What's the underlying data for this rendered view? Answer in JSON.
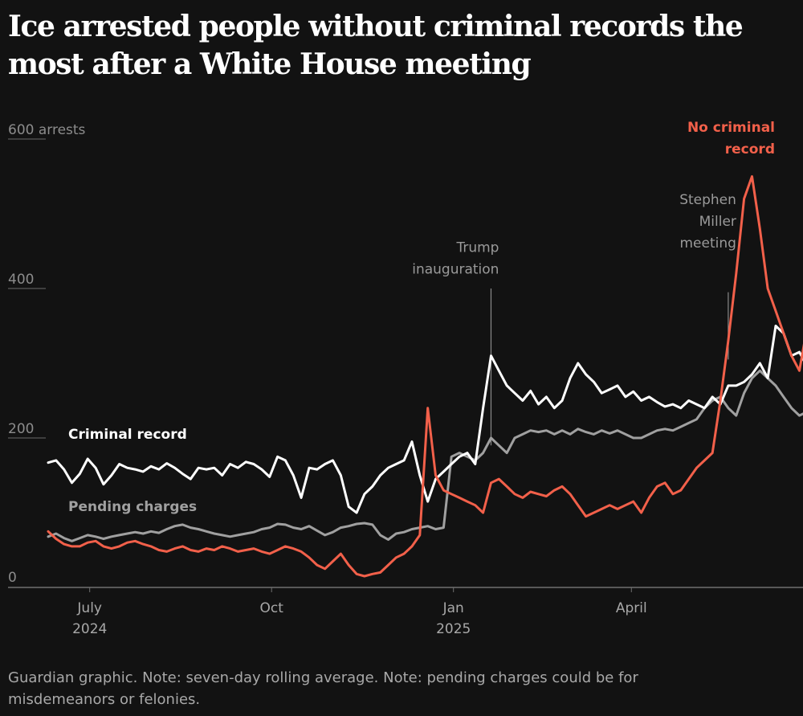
{
  "title": "Ice arrested people without criminal records the most after a White House meeting",
  "footnote": "Guardian graphic. Note: seven-day rolling average. Note: pending charges could be for misdemeanors or felonies.",
  "chart_data": {
    "type": "line",
    "title": "Ice arrested people without criminal records the most after a White House meeting",
    "xlabel": "",
    "ylabel": "arrests",
    "ylim": [
      0,
      600
    ],
    "xlim": [
      "2024-06-10",
      "2025-06-26"
    ],
    "grid": true,
    "y_ticks": [
      {
        "value": 0,
        "label": "0"
      },
      {
        "value": 200,
        "label": "200"
      },
      {
        "value": 400,
        "label": "400"
      },
      {
        "value": 600,
        "label": "600",
        "suffix": " arrests"
      }
    ],
    "x_ticks": [
      {
        "date": "2024-07-01",
        "label": "July",
        "sublabel": "2024"
      },
      {
        "date": "2024-10-01",
        "label": "Oct",
        "sublabel": ""
      },
      {
        "date": "2025-01-01",
        "label": "Jan",
        "sublabel": "2025"
      },
      {
        "date": "2025-04-01",
        "label": "April",
        "sublabel": ""
      }
    ],
    "annotations": [
      {
        "date": "2025-01-20",
        "lines": [
          "Trump",
          "inauguration"
        ],
        "label_value": 420,
        "line_top_value": 400,
        "line_bottom_value": 190
      },
      {
        "date": "2025-05-20",
        "lines": [
          "Stephen",
          "Miller",
          "meeting"
        ],
        "label_value": 455,
        "line_top_value": 395,
        "line_bottom_value": 305
      }
    ],
    "x_step_days": 4,
    "series": [
      {
        "name": "Criminal record",
        "color": "#ffffff",
        "label_position": "above-left",
        "values": [
          167,
          170,
          158,
          140,
          152,
          172,
          160,
          138,
          150,
          165,
          160,
          158,
          155,
          162,
          158,
          166,
          160,
          152,
          145,
          160,
          158,
          160,
          150,
          165,
          160,
          168,
          165,
          158,
          148,
          175,
          170,
          150,
          120,
          160,
          158,
          165,
          170,
          150,
          108,
          100,
          125,
          135,
          150,
          160,
          165,
          170,
          195,
          150,
          115,
          145,
          155,
          165,
          175,
          180,
          165,
          240,
          310,
          290,
          270,
          260,
          250,
          263,
          245,
          255,
          240,
          250,
          280,
          300,
          285,
          275,
          260,
          265,
          270,
          255,
          262,
          250,
          255,
          248,
          242,
          245,
          240,
          250,
          245,
          240,
          255,
          245,
          270,
          270,
          275,
          285,
          300,
          280,
          350,
          340,
          310,
          315,
          295
        ]
      },
      {
        "name": "Pending charges",
        "color": "#a0a0a0",
        "label_position": "above-left",
        "values": [
          68,
          72,
          66,
          62,
          66,
          70,
          68,
          65,
          68,
          70,
          72,
          74,
          72,
          75,
          73,
          78,
          82,
          84,
          80,
          78,
          75,
          72,
          70,
          68,
          70,
          72,
          74,
          78,
          80,
          85,
          84,
          80,
          78,
          82,
          76,
          70,
          74,
          80,
          82,
          85,
          86,
          84,
          70,
          64,
          72,
          74,
          78,
          80,
          82,
          78,
          80,
          175,
          180,
          175,
          170,
          180,
          200,
          190,
          180,
          200,
          205,
          210,
          208,
          210,
          205,
          210,
          205,
          212,
          208,
          205,
          210,
          206,
          210,
          205,
          200,
          200,
          205,
          210,
          212,
          210,
          215,
          220,
          225,
          240,
          250,
          255,
          240,
          230,
          260,
          280,
          290,
          280,
          270,
          255,
          240,
          230,
          235
        ]
      },
      {
        "name": "No criminal record",
        "color": "#f2604a",
        "label_position": "top-right",
        "values": [
          75,
          65,
          58,
          55,
          55,
          60,
          62,
          55,
          52,
          55,
          60,
          62,
          58,
          55,
          50,
          48,
          52,
          55,
          50,
          48,
          52,
          50,
          55,
          52,
          48,
          50,
          52,
          48,
          45,
          50,
          55,
          52,
          48,
          40,
          30,
          25,
          35,
          45,
          30,
          18,
          15,
          18,
          20,
          30,
          40,
          45,
          55,
          70,
          240,
          150,
          130,
          125,
          120,
          115,
          110,
          100,
          140,
          145,
          135,
          125,
          120,
          128,
          125,
          122,
          130,
          135,
          125,
          110,
          95,
          100,
          105,
          110,
          105,
          110,
          115,
          100,
          120,
          135,
          140,
          125,
          130,
          145,
          160,
          170,
          180,
          250,
          330,
          420,
          520,
          550,
          480,
          400,
          370,
          340,
          310,
          290,
          350
        ]
      }
    ]
  }
}
